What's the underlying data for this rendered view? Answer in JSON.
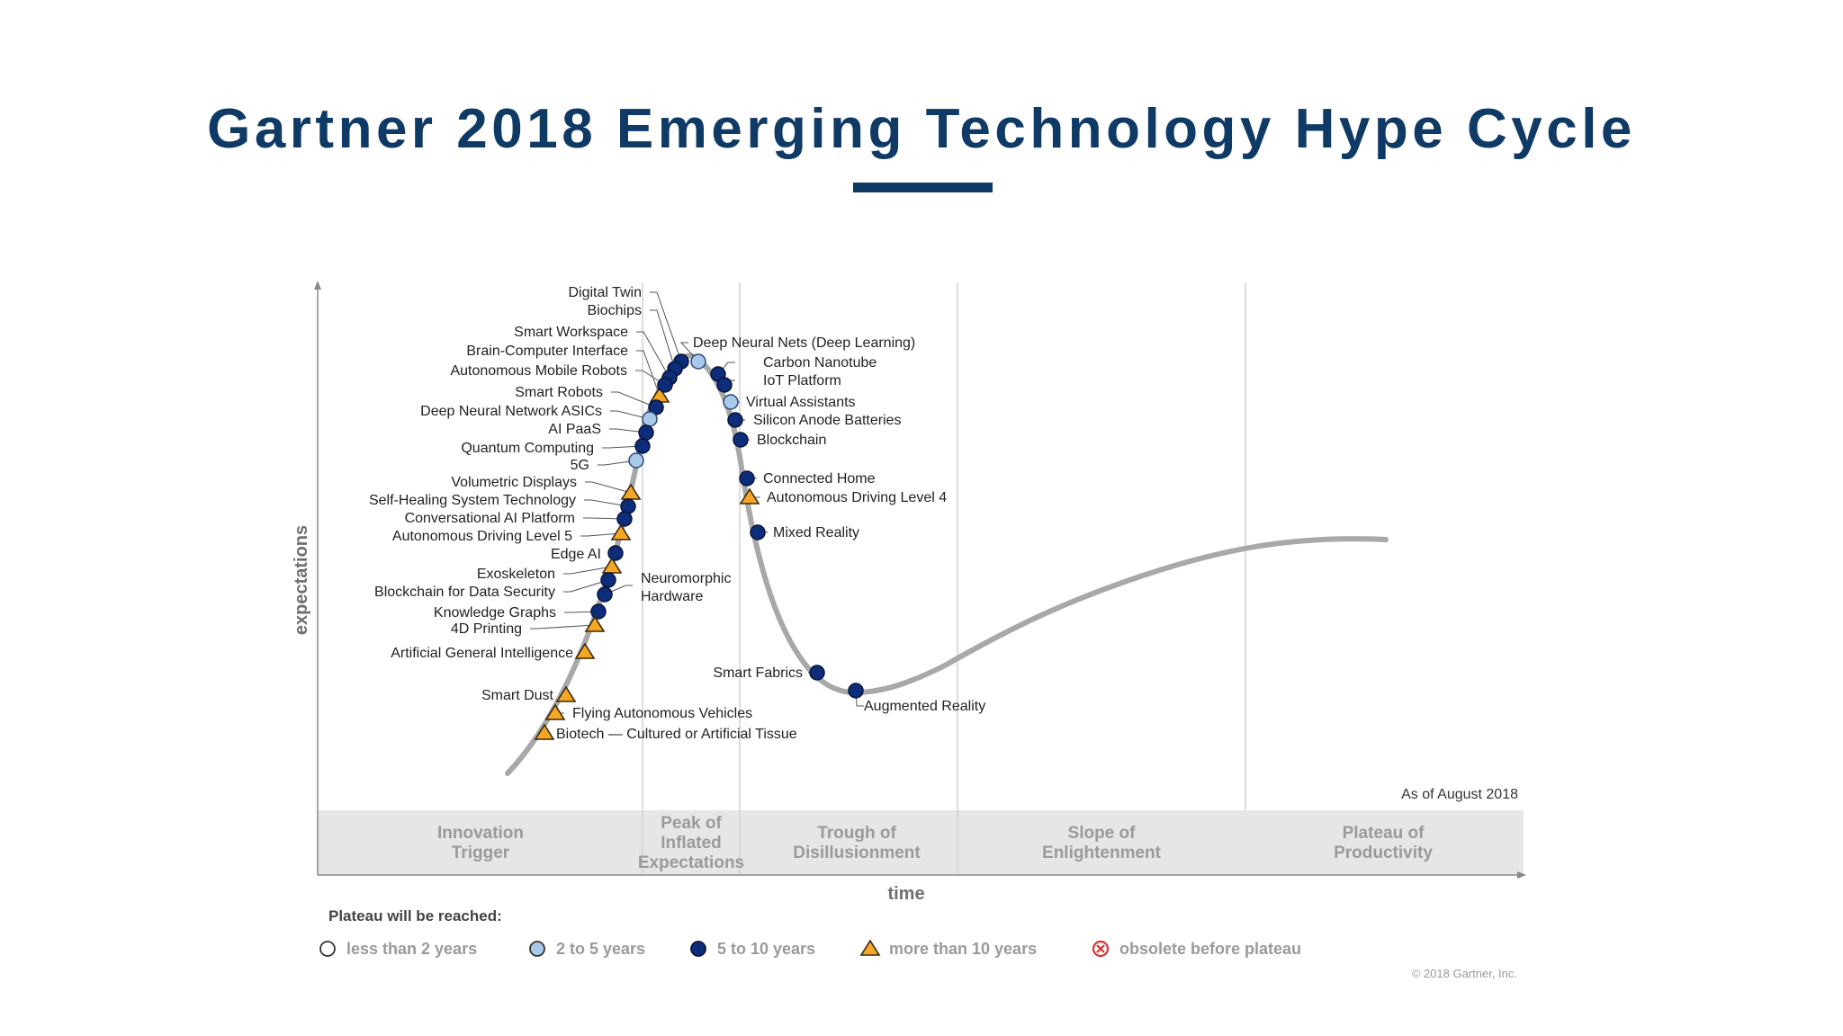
{
  "slide": {
    "title": "Gartner 2018 Emerging Technology Hype Cycle"
  },
  "chart": {
    "y_axis_label": "expectations",
    "x_axis_label": "time",
    "as_of": "As of August 2018",
    "copyright": "© 2018 Gartner, Inc.",
    "phases": [
      {
        "lines": [
          "Innovation",
          "Trigger"
        ]
      },
      {
        "lines": [
          "Peak of",
          "Inflated",
          "Expectations"
        ]
      },
      {
        "lines": [
          "Trough of",
          "Disillusionment"
        ]
      },
      {
        "lines": [
          "Slope of",
          "Enlightenment"
        ]
      },
      {
        "lines": [
          "Plateau of",
          "Productivity"
        ]
      }
    ],
    "legend": {
      "title": "Plateau will be reached:",
      "items": [
        {
          "label": "less than 2 years",
          "marker": "hollow-circle",
          "color": "#ffffff"
        },
        {
          "label": "2 to 5 years",
          "marker": "light-circle",
          "color": "#a9c9ea"
        },
        {
          "label": "5 to 10 years",
          "marker": "dark-circle",
          "color": "#0d2d7a"
        },
        {
          "label": "more than 10 years",
          "marker": "triangle",
          "color": "#f5a623"
        },
        {
          "label": "obsolete before plateau",
          "marker": "crossed-circle",
          "color": "#e03030"
        }
      ]
    },
    "colors": {
      "curve": "#a8a8a8",
      "dark_marker": "#0d2d7a",
      "light_marker": "#a9c9ea",
      "triangle_marker": "#f5a623",
      "phase_band": "#e6e6e6",
      "phase_text": "#9a9a9a",
      "divider": "#d2d2d2",
      "label_text": "#222222"
    }
  },
  "chart_data": {
    "type": "scatter",
    "title": "",
    "xlabel": "time",
    "ylabel": "expectations",
    "technologies": [
      {
        "name": "Digital Twin",
        "phase": "Peak of Inflated Expectations",
        "plateau": "5 to 10 years"
      },
      {
        "name": "Biochips",
        "phase": "Peak of Inflated Expectations",
        "plateau": "5 to 10 years"
      },
      {
        "name": "Smart Workspace",
        "phase": "Peak of Inflated Expectations",
        "plateau": "5 to 10 years"
      },
      {
        "name": "Brain-Computer Interface",
        "phase": "Innovation Trigger",
        "plateau": "more than 10 years"
      },
      {
        "name": "Autonomous Mobile Robots",
        "phase": "Innovation Trigger",
        "plateau": "5 to 10 years"
      },
      {
        "name": "Smart Robots",
        "phase": "Innovation Trigger",
        "plateau": "5 to 10 years"
      },
      {
        "name": "Deep Neural Network ASICs",
        "phase": "Innovation Trigger",
        "plateau": "2 to 5 years"
      },
      {
        "name": "AI PaaS",
        "phase": "Innovation Trigger",
        "plateau": "5 to 10 years"
      },
      {
        "name": "Quantum Computing",
        "phase": "Innovation Trigger",
        "plateau": "5 to 10 years"
      },
      {
        "name": "5G",
        "phase": "Innovation Trigger",
        "plateau": "2 to 5 years"
      },
      {
        "name": "Volumetric Displays",
        "phase": "Innovation Trigger",
        "plateau": "more than 10 years"
      },
      {
        "name": "Self-Healing System Technology",
        "phase": "Innovation Trigger",
        "plateau": "5 to 10 years"
      },
      {
        "name": "Conversational AI Platform",
        "phase": "Innovation Trigger",
        "plateau": "5 to 10 years"
      },
      {
        "name": "Autonomous Driving Level 5",
        "phase": "Innovation Trigger",
        "plateau": "more than 10 years"
      },
      {
        "name": "Edge AI",
        "phase": "Innovation Trigger",
        "plateau": "5 to 10 years"
      },
      {
        "name": "Exoskeleton",
        "phase": "Innovation Trigger",
        "plateau": "more than 10 years"
      },
      {
        "name": "Neuromorphic Hardware",
        "phase": "Innovation Trigger",
        "plateau": "5 to 10 years"
      },
      {
        "name": "Blockchain for Data Security",
        "phase": "Innovation Trigger",
        "plateau": "5 to 10 years"
      },
      {
        "name": "Knowledge Graphs",
        "phase": "Innovation Trigger",
        "plateau": "5 to 10 years"
      },
      {
        "name": "4D Printing",
        "phase": "Innovation Trigger",
        "plateau": "more than 10 years"
      },
      {
        "name": "Artificial General Intelligence",
        "phase": "Innovation Trigger",
        "plateau": "more than 10 years"
      },
      {
        "name": "Smart Dust",
        "phase": "Innovation Trigger",
        "plateau": "more than 10 years"
      },
      {
        "name": "Flying Autonomous Vehicles",
        "phase": "Innovation Trigger",
        "plateau": "more than 10 years"
      },
      {
        "name": "Biotech — Cultured or Artificial Tissue",
        "phase": "Innovation Trigger",
        "plateau": "more than 10 years"
      },
      {
        "name": "Deep Neural Nets (Deep Learning)",
        "phase": "Peak of Inflated Expectations",
        "plateau": "2 to 5 years"
      },
      {
        "name": "Carbon Nanotube",
        "phase": "Peak of Inflated Expectations",
        "plateau": "5 to 10 years"
      },
      {
        "name": "IoT Platform",
        "phase": "Peak of Inflated Expectations",
        "plateau": "5 to 10 years"
      },
      {
        "name": "Virtual Assistants",
        "phase": "Peak of Inflated Expectations",
        "plateau": "2 to 5 years"
      },
      {
        "name": "Silicon Anode Batteries",
        "phase": "Peak of Inflated Expectations",
        "plateau": "5 to 10 years"
      },
      {
        "name": "Blockchain",
        "phase": "Peak of Inflated Expectations",
        "plateau": "5 to 10 years"
      },
      {
        "name": "Connected Home",
        "phase": "Trough of Disillusionment",
        "plateau": "5 to 10 years"
      },
      {
        "name": "Autonomous Driving Level 4",
        "phase": "Trough of Disillusionment",
        "plateau": "more than 10 years"
      },
      {
        "name": "Mixed Reality",
        "phase": "Trough of Disillusionment",
        "plateau": "5 to 10 years"
      },
      {
        "name": "Smart Fabrics",
        "phase": "Trough of Disillusionment",
        "plateau": "5 to 10 years"
      },
      {
        "name": "Augmented Reality",
        "phase": "Trough of Disillusionment",
        "plateau": "5 to 10 years"
      }
    ]
  }
}
